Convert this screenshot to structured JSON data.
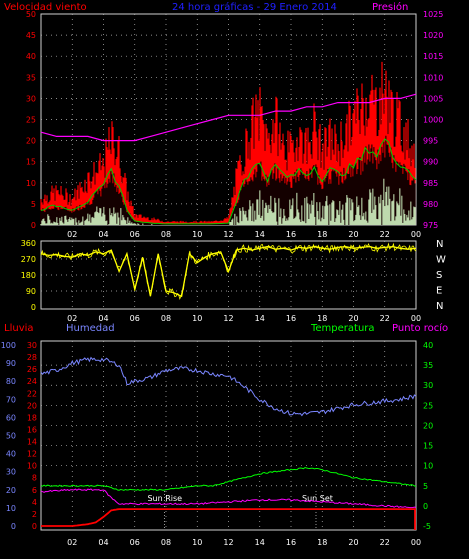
{
  "header": {
    "left": "Velocidad viento",
    "center": "24 hora gráficas - 29 Enero 2014",
    "right": "Presión"
  },
  "x_ticks": [
    "02",
    "04",
    "06",
    "08",
    "10",
    "12",
    "14",
    "16",
    "18",
    "20",
    "22",
    "00"
  ],
  "wind_chart": {
    "type": "bar",
    "y_left_ticks": [
      "0",
      "5",
      "10",
      "15",
      "20",
      "25",
      "30",
      "35",
      "40",
      "45",
      "50"
    ],
    "y_right_ticks": [
      "975",
      "980",
      "985",
      "990",
      "995",
      "1000",
      "1005",
      "1010",
      "1015",
      "1020",
      "1025"
    ],
    "gust_color": "#ff0000",
    "avg_color": "#00cc00",
    "speed_color": "#ccffcc",
    "pressure_color": "#ff00ff",
    "pressure": {
      "x": [
        0,
        1,
        2,
        3,
        4,
        5,
        6,
        7,
        8,
        9,
        10,
        11,
        12,
        13,
        14,
        15,
        16,
        17,
        18,
        19,
        20,
        21,
        22,
        23,
        24
      ],
      "values": [
        997,
        996,
        996,
        996,
        995,
        995,
        995,
        996,
        997,
        998,
        999,
        1000,
        1001,
        1001,
        1001,
        1002,
        1002,
        1003,
        1003,
        1004,
        1004,
        1004,
        1005,
        1005,
        1006
      ]
    },
    "gust_envelope": [
      [
        0,
        8
      ],
      [
        1,
        10
      ],
      [
        2,
        8
      ],
      [
        3,
        14
      ],
      [
        4,
        18
      ],
      [
        4.5,
        26
      ],
      [
        5,
        22
      ],
      [
        5.5,
        10
      ],
      [
        6,
        3
      ],
      [
        7,
        2
      ],
      [
        8,
        1
      ],
      [
        9,
        1
      ],
      [
        10,
        1
      ],
      [
        11,
        1
      ],
      [
        12,
        2
      ],
      [
        12.5,
        14
      ],
      [
        13,
        22
      ],
      [
        13.5,
        30
      ],
      [
        14,
        34
      ],
      [
        14.5,
        26
      ],
      [
        15,
        32
      ],
      [
        15.5,
        24
      ],
      [
        16,
        22
      ],
      [
        16.5,
        28
      ],
      [
        17,
        24
      ],
      [
        17.5,
        30
      ],
      [
        18,
        22
      ],
      [
        18.5,
        26
      ],
      [
        19,
        24
      ],
      [
        19.5,
        28
      ],
      [
        20,
        32
      ],
      [
        20.5,
        36
      ],
      [
        21,
        40
      ],
      [
        21.5,
        36
      ],
      [
        22,
        42
      ],
      [
        22.5,
        34
      ],
      [
        23,
        30
      ],
      [
        23.5,
        26
      ],
      [
        24,
        22
      ]
    ],
    "avg_envelope": [
      [
        0,
        4
      ],
      [
        1,
        5
      ],
      [
        2,
        4
      ],
      [
        3,
        6
      ],
      [
        4,
        10
      ],
      [
        4.5,
        14
      ],
      [
        5,
        10
      ],
      [
        5.5,
        4
      ],
      [
        6,
        1
      ],
      [
        7,
        0.5
      ],
      [
        8,
        0.3
      ],
      [
        9,
        0.3
      ],
      [
        10,
        0.3
      ],
      [
        11,
        0.3
      ],
      [
        12,
        0.5
      ],
      [
        12.5,
        6
      ],
      [
        13,
        12
      ],
      [
        13.5,
        14
      ],
      [
        14,
        16
      ],
      [
        14.5,
        12
      ],
      [
        15,
        15
      ],
      [
        15.5,
        13
      ],
      [
        16,
        12
      ],
      [
        16.5,
        14
      ],
      [
        17,
        13
      ],
      [
        17.5,
        15
      ],
      [
        18,
        12
      ],
      [
        18.5,
        14
      ],
      [
        19,
        13
      ],
      [
        19.5,
        14
      ],
      [
        20,
        15
      ],
      [
        20.5,
        17
      ],
      [
        21,
        20
      ],
      [
        21.5,
        18
      ],
      [
        22,
        22
      ],
      [
        22.5,
        18
      ],
      [
        23,
        16
      ],
      [
        23.5,
        14
      ],
      [
        24,
        12
      ]
    ]
  },
  "direction_chart": {
    "type": "line",
    "y_left_ticks": [
      "0",
      "90",
      "180",
      "270",
      "360"
    ],
    "y_right_labels": [
      "N",
      "W",
      "S",
      "E",
      "N"
    ],
    "color": "#ffff00",
    "x": [
      0,
      0.5,
      1,
      1.5,
      2,
      2.5,
      3,
      3.5,
      4,
      4.5,
      5,
      5.5,
      6,
      6.5,
      7,
      7.5,
      8,
      8.5,
      9,
      9.5,
      10,
      10.5,
      11,
      11.5,
      12,
      12.5,
      13,
      13.5,
      14,
      14.5,
      15,
      15.5,
      16,
      16.5,
      17,
      17.5,
      18,
      18.5,
      19,
      19.5,
      20,
      20.5,
      21,
      21.5,
      22,
      22.5,
      23,
      23.5,
      24
    ],
    "values": [
      300,
      290,
      295,
      285,
      280,
      300,
      290,
      310,
      300,
      320,
      200,
      300,
      100,
      280,
      60,
      300,
      90,
      80,
      60,
      300,
      250,
      280,
      300,
      310,
      200,
      320,
      330,
      320,
      330,
      340,
      325,
      330,
      320,
      335,
      330,
      340,
      330,
      325,
      335,
      340,
      330,
      335,
      340,
      330,
      335,
      340,
      330,
      325,
      330
    ]
  },
  "weather_chart": {
    "labels": {
      "rain": "Lluvia",
      "humidity": "Humedad",
      "temperature": "Temperatura",
      "dewpoint": "Punto rocío"
    },
    "sun_labels": {
      "rise": "Sun Rise",
      "set": "Sun Set"
    },
    "axis1_ticks": [
      "0",
      "10",
      "20",
      "30",
      "40",
      "50",
      "60",
      "70",
      "80",
      "90",
      "100"
    ],
    "axis2_ticks": [
      "0",
      "2",
      "4",
      "6",
      "8",
      "10",
      "12",
      "14",
      "16",
      "18",
      "20",
      "22",
      "24",
      "26",
      "28",
      "30"
    ],
    "axis_right_ticks": [
      "-5",
      "0",
      "5",
      "10",
      "15",
      "20",
      "25",
      "30",
      "35",
      "40"
    ],
    "humidity_color": "#7a86ff",
    "temperature_color": "#00ff00",
    "dewpoint_color": "#ff00ff",
    "rain_color": "#ff0000",
    "humidity": {
      "x": [
        0,
        1,
        2,
        3,
        4,
        5,
        5.5,
        6,
        7,
        8,
        9,
        10,
        11,
        12,
        13,
        14,
        15,
        16,
        17,
        18,
        19,
        20,
        21,
        22,
        23,
        24
      ],
      "values": [
        84,
        86,
        90,
        92,
        92,
        89,
        79,
        80,
        82,
        86,
        87,
        86,
        84,
        83,
        77,
        70,
        65,
        62,
        62,
        63,
        65,
        67,
        68,
        69,
        70,
        72
      ]
    },
    "temperature": {
      "x": [
        0,
        2,
        4,
        5,
        6,
        7,
        8,
        9,
        10,
        11,
        12,
        13,
        14,
        15,
        16,
        17,
        18,
        19,
        20,
        21,
        22,
        23,
        24
      ],
      "values": [
        5,
        5,
        5,
        4,
        4,
        4,
        4,
        4.5,
        5,
        5,
        6,
        7,
        8,
        8.5,
        9,
        9.5,
        9,
        8,
        7,
        6.5,
        6,
        5.5,
        5
      ]
    },
    "dewpoint": {
      "x": [
        0,
        2,
        4,
        4.5,
        5,
        6,
        8,
        10,
        12,
        14,
        16,
        18,
        20,
        22,
        24
      ],
      "values": [
        3.5,
        4,
        4,
        2,
        0.5,
        0.5,
        0.5,
        0.5,
        1,
        1.5,
        1.5,
        1,
        0.5,
        0,
        -0.5
      ]
    },
    "rain": {
      "x": [
        0,
        2,
        3,
        3.5,
        4,
        4.5,
        5,
        12,
        24
      ],
      "values": [
        0,
        0,
        0.3,
        0.6,
        1.5,
        2.6,
        2.8,
        2.8,
        2.8
      ]
    },
    "sunrise_hour": 7.9,
    "sunset_hour": 17.6
  }
}
